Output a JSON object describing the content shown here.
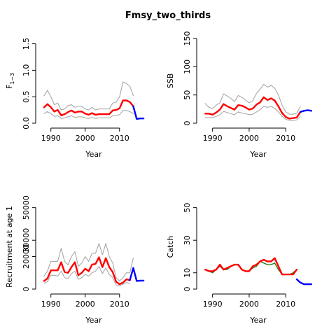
{
  "figure": {
    "title": "Fmsy_two_thirds"
  },
  "colors": {
    "median": "#ff0000",
    "bounds": "#a0a0a0",
    "projection": "#0000ff",
    "observed": "#2e7d1e"
  },
  "chart_data": [
    {
      "id": "f",
      "type": "line",
      "title": "",
      "xlabel": "Year",
      "ylabel": "F",
      "ylabel_sub": "1−3",
      "xlim": [
        1987,
        2018
      ],
      "ylim": [
        0,
        1.6
      ],
      "xticks": [
        1990,
        2000,
        2010
      ],
      "yticks": [
        0.0,
        0.5,
        1.0,
        1.5
      ],
      "ytick_labels": [
        "0.0",
        "0.5",
        "1.0",
        "1.5"
      ],
      "x": [
        1988,
        1989,
        1990,
        1991,
        1992,
        1993,
        1994,
        1995,
        1996,
        1997,
        1998,
        1999,
        2000,
        2001,
        2002,
        2003,
        2004,
        2005,
        2006,
        2007,
        2008,
        2009,
        2010,
        2011,
        2012,
        2013,
        2014
      ],
      "series": [
        {
          "role": "upper",
          "values": [
            0.52,
            0.62,
            0.5,
            0.35,
            0.38,
            0.25,
            0.27,
            0.33,
            0.35,
            0.3,
            0.32,
            0.32,
            0.27,
            0.25,
            0.3,
            0.25,
            0.27,
            0.27,
            0.27,
            0.27,
            0.38,
            0.4,
            0.5,
            0.78,
            0.75,
            0.7,
            0.52
          ]
        },
        {
          "role": "median",
          "values": [
            0.3,
            0.36,
            0.3,
            0.22,
            0.25,
            0.15,
            0.17,
            0.21,
            0.24,
            0.2,
            0.22,
            0.22,
            0.18,
            0.16,
            0.19,
            0.16,
            0.17,
            0.17,
            0.17,
            0.17,
            0.24,
            0.25,
            0.28,
            0.43,
            0.43,
            0.4,
            0.32
          ]
        },
        {
          "role": "lower",
          "values": [
            0.18,
            0.22,
            0.18,
            0.13,
            0.14,
            0.09,
            0.1,
            0.12,
            0.14,
            0.11,
            0.12,
            0.12,
            0.1,
            0.09,
            0.11,
            0.09,
            0.1,
            0.1,
            0.1,
            0.1,
            0.14,
            0.15,
            0.16,
            0.24,
            0.24,
            0.22,
            0.18
          ]
        },
        {
          "role": "projection",
          "x": [
            2014,
            2015,
            2016,
            2017
          ],
          "values": [
            0.32,
            0.08,
            0.09,
            0.09
          ]
        }
      ]
    },
    {
      "id": "ssb",
      "type": "line",
      "title": "",
      "xlabel": "Year",
      "ylabel": "SSB",
      "xlim": [
        1987,
        2018
      ],
      "ylim": [
        0,
        150
      ],
      "xticks": [
        1990,
        2000,
        2010
      ],
      "yticks": [
        0,
        50,
        100,
        150
      ],
      "ytick_labels": [
        "0",
        "50",
        "100",
        "150"
      ],
      "x": [
        1988,
        1989,
        1990,
        1991,
        1992,
        1993,
        1994,
        1995,
        1996,
        1997,
        1998,
        1999,
        2000,
        2001,
        2002,
        2003,
        2004,
        2005,
        2006,
        2007,
        2008,
        2009,
        2010,
        2011,
        2012,
        2013,
        2014
      ],
      "series": [
        {
          "role": "upper",
          "values": [
            35,
            28,
            26,
            32,
            36,
            52,
            48,
            44,
            38,
            49,
            46,
            41,
            36,
            40,
            53,
            60,
            69,
            64,
            67,
            62,
            50,
            32,
            20,
            16,
            16,
            18,
            30
          ]
        },
        {
          "role": "median",
          "values": [
            17,
            17,
            15,
            19,
            24,
            34,
            30,
            27,
            24,
            32,
            31,
            28,
            24,
            26,
            33,
            37,
            46,
            41,
            44,
            40,
            30,
            18,
            11,
            8,
            9,
            10,
            20
          ]
        },
        {
          "role": "lower",
          "values": [
            10,
            10,
            10,
            12,
            15,
            21,
            19,
            17,
            15,
            20,
            18,
            17,
            15,
            16,
            20,
            24,
            30,
            28,
            30,
            26,
            20,
            12,
            7,
            5,
            5,
            6,
            12
          ]
        },
        {
          "role": "projection",
          "x": [
            2014,
            2015,
            2016,
            2017
          ],
          "values": [
            20,
            22,
            23,
            22
          ]
        }
      ]
    },
    {
      "id": "recruitment",
      "type": "line",
      "title": "",
      "xlabel": "Year",
      "ylabel": "Recruitment at age 1",
      "xlim": [
        1987,
        2018
      ],
      "ylim": [
        0,
        52000
      ],
      "xticks": [
        1990,
        2000,
        2010
      ],
      "yticks": [
        0,
        20000,
        30000,
        50000
      ],
      "ytick_labels": [
        "0",
        "20000",
        "30000",
        "50000"
      ],
      "x": [
        1988,
        1989,
        1990,
        1991,
        1992,
        1993,
        1994,
        1995,
        1996,
        1997,
        1998,
        1999,
        2000,
        2001,
        2002,
        2003,
        2004,
        2005,
        2006,
        2007,
        2008,
        2009,
        2010,
        2011,
        2012,
        2013
      ],
      "series": [
        {
          "role": "upper",
          "values": [
            8000,
            11000,
            17000,
            17000,
            17000,
            25000,
            17000,
            15000,
            20000,
            23000,
            14000,
            16000,
            20000,
            17000,
            22000,
            22000,
            28000,
            21000,
            28000,
            20000,
            16000,
            7000,
            5000,
            7000,
            10000,
            10000
          ]
        },
        {
          "role": "median",
          "values": [
            5000,
            6500,
            11500,
            11500,
            11500,
            16500,
            10500,
            10000,
            13500,
            16500,
            8500,
            10000,
            12500,
            11000,
            15000,
            15500,
            19500,
            13500,
            19000,
            13500,
            10500,
            4500,
            3000,
            4000,
            6000,
            5500
          ]
        },
        {
          "role": "lower",
          "values": [
            3500,
            4500,
            8500,
            8500,
            8000,
            11000,
            7000,
            6500,
            9500,
            11000,
            6000,
            7000,
            9000,
            8000,
            10000,
            11000,
            14000,
            9500,
            13000,
            9000,
            7000,
            2500,
            2000,
            3000,
            4000,
            3500
          ]
        },
        {
          "role": "projection",
          "x": [
            2013,
            2014,
            2015,
            2016,
            2017
          ],
          "values": [
            5500,
            13000,
            5000,
            5200,
            5200
          ]
        },
        {
          "role": "projection_upper",
          "x": [
            2013,
            2014
          ],
          "values": [
            10000,
            19000
          ]
        }
      ]
    },
    {
      "id": "catch",
      "type": "line",
      "title": "",
      "xlabel": "Year",
      "ylabel": "Catch",
      "xlim": [
        1987,
        2018
      ],
      "ylim": [
        0,
        52
      ],
      "xticks": [
        1990,
        2000,
        2010
      ],
      "yticks": [
        0,
        10,
        30,
        50
      ],
      "ytick_labels": [
        "0",
        "10",
        "30",
        "50"
      ],
      "x": [
        1988,
        1989,
        1990,
        1991,
        1992,
        1993,
        1994,
        1995,
        1996,
        1997,
        1998,
        1999,
        2000,
        2001,
        2002,
        2003,
        2004,
        2005,
        2006,
        2007,
        2008,
        2009,
        2010,
        2011,
        2012,
        2013
      ],
      "series": [
        {
          "role": "observed",
          "values": [
            12,
            11,
            10,
            12,
            14,
            12,
            12,
            14,
            15,
            15,
            12,
            11,
            11,
            13,
            14,
            17,
            16,
            15,
            15,
            16,
            12,
            9,
            9,
            9,
            10,
            12
          ]
        },
        {
          "role": "median",
          "values": [
            12,
            11,
            11,
            12,
            15,
            12,
            13,
            14,
            15,
            15,
            12,
            11,
            11,
            14,
            15,
            17,
            18,
            17,
            17,
            19,
            14,
            9,
            9,
            9,
            9,
            12
          ]
        },
        {
          "role": "projection",
          "x": [
            2013,
            2014,
            2015,
            2016,
            2017
          ],
          "values": [
            6,
            4,
            3,
            3,
            3
          ]
        }
      ]
    }
  ]
}
